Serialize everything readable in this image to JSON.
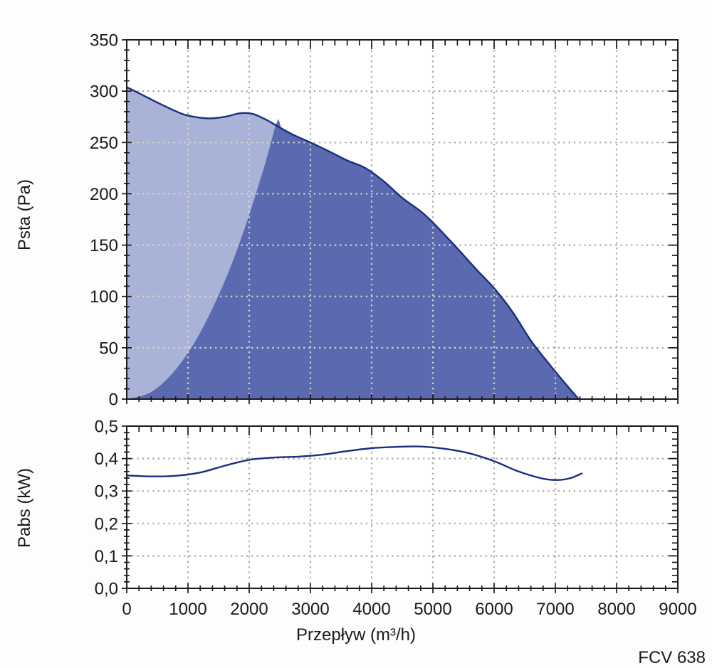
{
  "page": {
    "background": "#fdfdfb"
  },
  "footer": {
    "model_label": "FCV 638"
  },
  "chart_data": [
    {
      "type": "area",
      "name": "static-pressure-chart",
      "title": "",
      "ylabel": "Psta (Pa)",
      "xlabel": "",
      "xlim": [
        0,
        9000
      ],
      "ylim": [
        0,
        350
      ],
      "grid": "dotted",
      "legend": "none",
      "x_major": 1000,
      "x_minor": 200,
      "y_major": 50,
      "y_minor": 10,
      "x_tick_values": [
        0,
        1000,
        2000,
        3000,
        4000,
        5000,
        6000,
        7000,
        8000,
        9000
      ],
      "y_tick_values": [
        0,
        50,
        100,
        150,
        200,
        250,
        300,
        350
      ],
      "y_tick_labels": [
        "0",
        "50",
        "100",
        "150",
        "200",
        "250",
        "300",
        "350"
      ],
      "colors": {
        "curve": "#1b2d80",
        "region_left": "#a9b3d8",
        "region_right": "#5b6ab0",
        "grid_outside": "#a9a69f",
        "grid_inside_fill": "#dcd8c1"
      },
      "split_x": 2430,
      "fan_curve": [
        [
          0,
          304
        ],
        [
          300,
          295
        ],
        [
          600,
          286
        ],
        [
          900,
          278
        ],
        [
          1100,
          275
        ],
        [
          1350,
          273.5
        ],
        [
          1600,
          275
        ],
        [
          1850,
          278.5
        ],
        [
          2050,
          278
        ],
        [
          2250,
          273
        ],
        [
          2430,
          267
        ],
        [
          2700,
          258
        ],
        [
          3000,
          250
        ],
        [
          3300,
          241.5
        ],
        [
          3600,
          232.5
        ],
        [
          3900,
          225
        ],
        [
          4200,
          212
        ],
        [
          4500,
          196
        ],
        [
          4800,
          183
        ],
        [
          5000,
          172
        ],
        [
          5350,
          150
        ],
        [
          5700,
          127
        ],
        [
          6000,
          108
        ],
        [
          6300,
          85
        ],
        [
          6600,
          57
        ],
        [
          6900,
          34
        ],
        [
          7150,
          16
        ],
        [
          7380,
          0
        ]
      ],
      "boundary_curve": [
        [
          0,
          0
        ],
        [
          400,
          7
        ],
        [
          800,
          29
        ],
        [
          1200,
          65
        ],
        [
          1600,
          115
        ],
        [
          1900,
          162
        ],
        [
          2150,
          208
        ],
        [
          2300,
          238
        ],
        [
          2430,
          267
        ]
      ],
      "boundary_spike": [
        [
          2480,
          273
        ],
        [
          2520,
          264.5
        ]
      ]
    },
    {
      "type": "line",
      "name": "absorbed-power-chart",
      "title": "",
      "ylabel": "Pabs (kW)",
      "xlabel": "Przepływ (m³/h)",
      "xlim": [
        0,
        9000
      ],
      "ylim": [
        0,
        0.5
      ],
      "grid": "dotted",
      "legend": "none",
      "x_major": 1000,
      "x_minor": 200,
      "y_major": 0.1,
      "y_minor": 0.02,
      "x_tick_values": [
        0,
        1000,
        2000,
        3000,
        4000,
        5000,
        6000,
        7000,
        8000,
        9000
      ],
      "x_tick_labels": [
        "0",
        "1000",
        "2000",
        "3000",
        "4000",
        "5000",
        "6000",
        "7000",
        "8000",
        "9000"
      ],
      "y_tick_values": [
        0,
        0.1,
        0.2,
        0.3,
        0.4,
        0.5
      ],
      "y_tick_labels": [
        "0,0",
        "0,1",
        "0,2",
        "0,3",
        "0,4",
        "0,5"
      ],
      "colors": {
        "curve": "#1b2d80",
        "grid_outside": "#a9a69f"
      },
      "power_curve": [
        [
          0,
          0.348
        ],
        [
          400,
          0.345
        ],
        [
          800,
          0.347
        ],
        [
          1200,
          0.357
        ],
        [
          1600,
          0.378
        ],
        [
          2000,
          0.396
        ],
        [
          2400,
          0.403
        ],
        [
          2800,
          0.406
        ],
        [
          3200,
          0.412
        ],
        [
          3600,
          0.423
        ],
        [
          4000,
          0.432
        ],
        [
          4400,
          0.436
        ],
        [
          4800,
          0.437
        ],
        [
          5200,
          0.43
        ],
        [
          5600,
          0.416
        ],
        [
          6000,
          0.392
        ],
        [
          6400,
          0.36
        ],
        [
          6800,
          0.338
        ],
        [
          7050,
          0.334
        ],
        [
          7250,
          0.34
        ],
        [
          7430,
          0.354
        ]
      ]
    }
  ]
}
